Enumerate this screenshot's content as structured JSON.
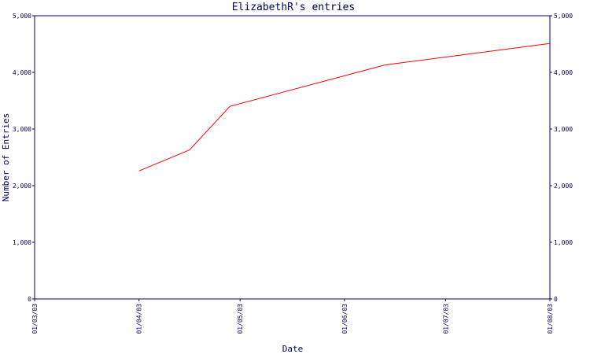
{
  "chart_data": {
    "type": "line",
    "title": "ElizabethR's entries",
    "xlabel": "Date",
    "ylabel": "Number of Entries",
    "x_ticks": [
      "01/03/03",
      "01/04/03",
      "01/05/03",
      "01/06/03",
      "01/07/03",
      "01/08/03"
    ],
    "ylim": [
      0,
      5000
    ],
    "y_ticks": [
      0,
      1000,
      2000,
      3000,
      4000,
      5000
    ],
    "y_tick_labels": [
      "0",
      "1,000",
      "2,000",
      "3,000",
      "4,000",
      "5,000"
    ],
    "grid": false,
    "series": [
      {
        "color": "#ff0000",
        "x": [
          "01/04/03",
          "16/04/03",
          "28/04/03",
          "13/06/03",
          "01/08/03"
        ],
        "values": [
          2260,
          2630,
          3400,
          4130,
          4510
        ]
      }
    ]
  },
  "colors": {
    "axis": "#000066",
    "line": "#ff0000",
    "background": "#ffffff"
  }
}
